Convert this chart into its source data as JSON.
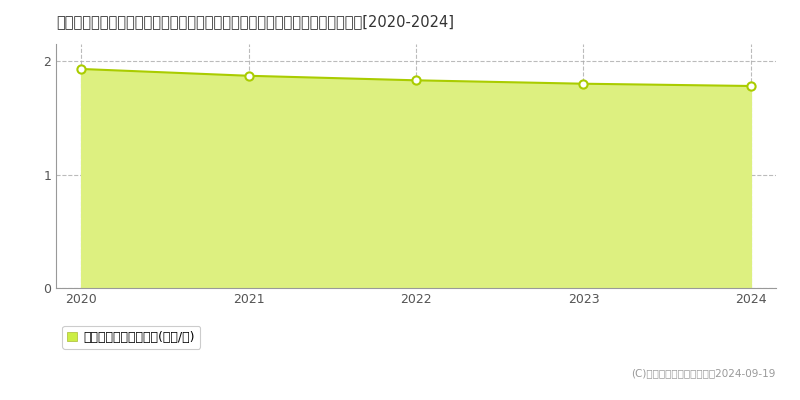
{
  "title": "福岡県京都郡みやこ町勝山宮原字カグラタ２５２番１外　基準地価　地価推移[2020-2024]",
  "years": [
    2020,
    2021,
    2022,
    2023,
    2024
  ],
  "values": [
    1.93,
    1.87,
    1.83,
    1.8,
    1.78
  ],
  "ylim": [
    0,
    2.15
  ],
  "yticks": [
    0,
    1,
    2
  ],
  "line_color": "#aacc00",
  "fill_color": "#ddf080",
  "marker_facecolor": "#ffffff",
  "marker_edgecolor": "#aacc00",
  "grid_color": "#aaaaaa",
  "background_color": "#ffffff",
  "legend_label": "基準地価　平均坪単価(万円/坪)",
  "legend_marker_color": "#ccee44",
  "copyright_text": "(C)土地価格ドットコム　　2024-09-19",
  "title_fontsize": 10.5,
  "axis_fontsize": 9,
  "legend_fontsize": 9
}
